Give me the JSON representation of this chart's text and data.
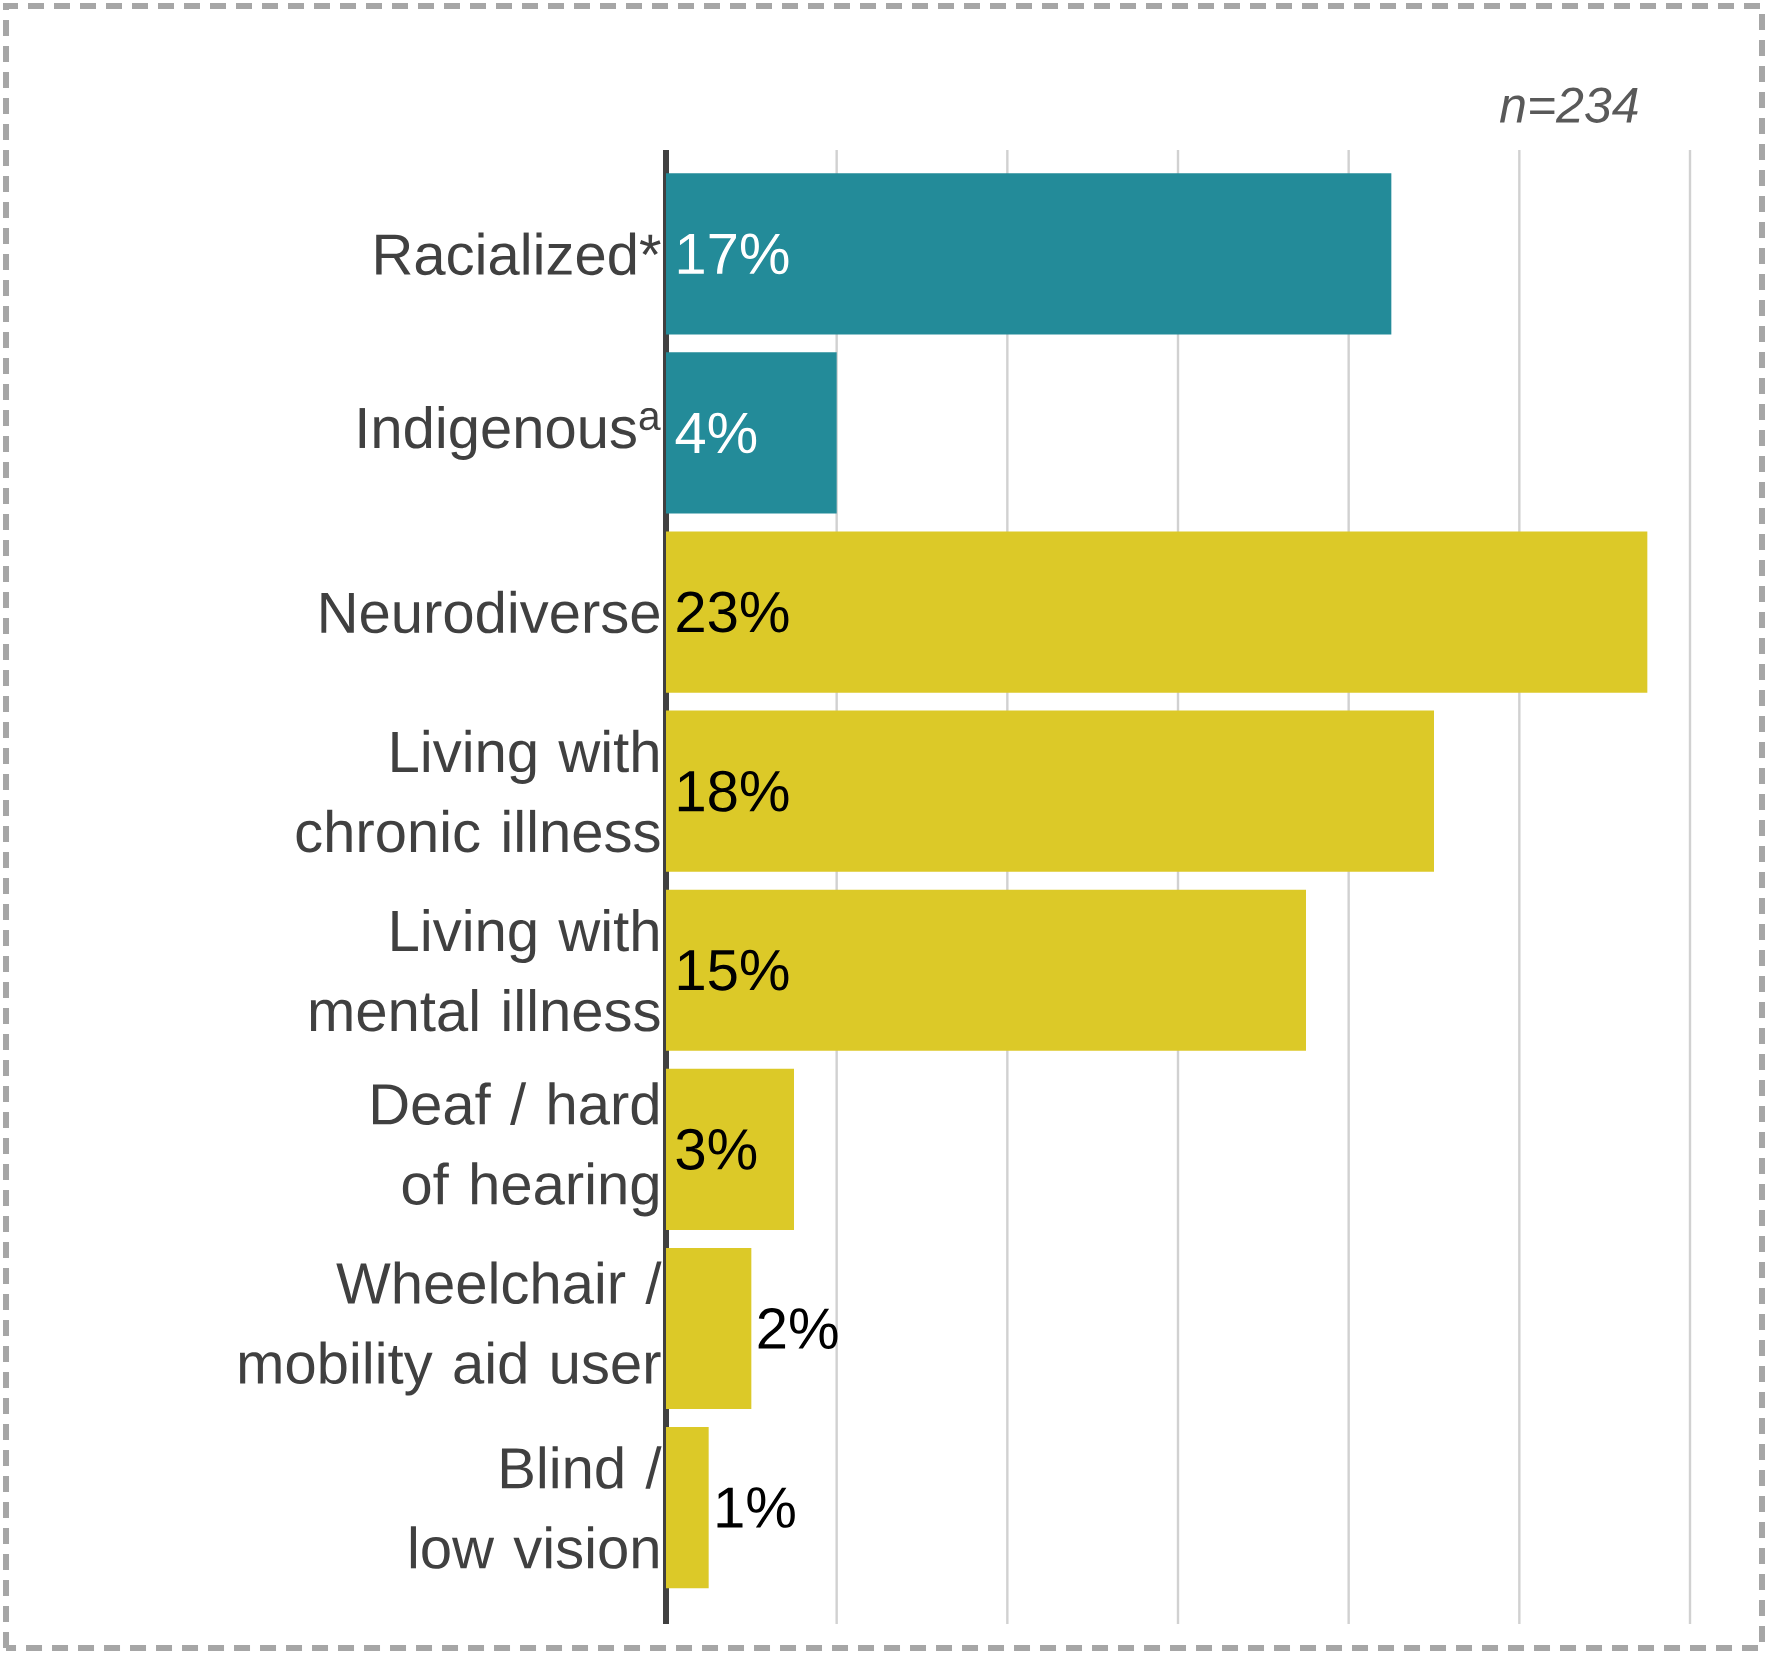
{
  "chart_data": {
    "type": "bar",
    "orientation": "horizontal",
    "categories": [
      "Racialized*",
      "Indigenous$^{a}$",
      "Neurodiverse",
      "Living with chronic illness",
      "Living with mental illness",
      "Deaf / hard of hearing",
      "Wheelchair / mobility aid user",
      "Blind / low vision"
    ],
    "values": [
      17,
      4,
      23,
      18,
      15,
      3,
      2,
      1
    ],
    "colors": [
      "#238b99",
      "#238b99",
      "#dcc928",
      "#dcc928",
      "#dcc928",
      "#dcc928",
      "#dcc928",
      "#dcc928"
    ],
    "xlim": [
      0,
      24
    ],
    "xticks": [
      {
        "value": 4,
        "label": null
      },
      {
        "value": 8,
        "label": null
      },
      {
        "value": 12,
        "label": null
      },
      {
        "value": 16,
        "label": null
      },
      {
        "value": 20,
        "label": null
      },
      {
        "value": 24,
        "label": null
      }
    ],
    "tick_labels": "y",
    "grid": "x",
    "value_labels": [
      "17%",
      "4%",
      "23%",
      "18%",
      "15%",
      "3%",
      "2%",
      "1%"
    ],
    "annotations": [
      "n=234"
    ]
  }
}
